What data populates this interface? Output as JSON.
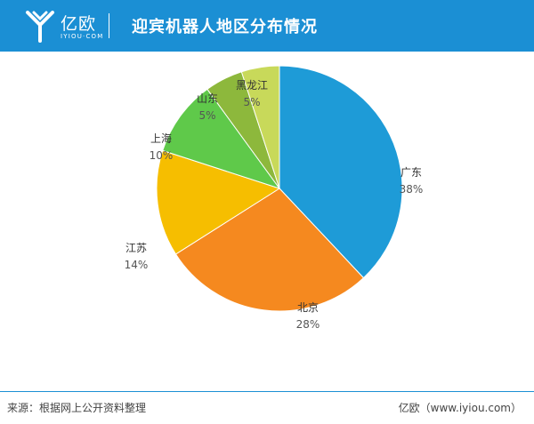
{
  "header": {
    "logo_cn": "亿欧",
    "logo_en": "IYIOU·COM",
    "title": "迎宾机器人地区分布情况",
    "bg_color": "#1b8fd4"
  },
  "chart_data": {
    "type": "pie",
    "title": "迎宾机器人地区分布情况",
    "slices": [
      {
        "name": "广东",
        "value": 38,
        "label": "38%",
        "color": "#1e9bd7"
      },
      {
        "name": "北京",
        "value": 28,
        "label": "28%",
        "color": "#f5891f"
      },
      {
        "name": "江苏",
        "value": 14,
        "label": "14%",
        "color": "#f6be00"
      },
      {
        "name": "上海",
        "value": 10,
        "label": "10%",
        "color": "#5fc94a"
      },
      {
        "name": "山东",
        "value": 5,
        "label": "5%",
        "color": "#8db83c"
      },
      {
        "name": "黑龙江",
        "value": 5,
        "label": "5%",
        "color": "#c8d95a"
      }
    ],
    "start_angle": "12 o'clock",
    "direction": "clockwise"
  },
  "footer": {
    "source": "来源：根据网上公开资料整理",
    "credit": "亿欧（www.iyiou.com）"
  }
}
